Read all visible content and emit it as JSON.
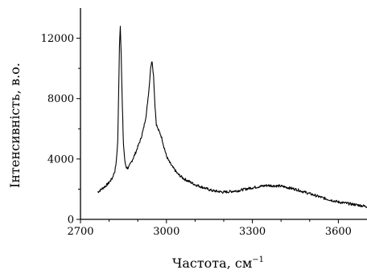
{
  "chart_data": {
    "type": "line",
    "xlabel": "Частота, см",
    "xlabel_sup": "−1",
    "ylabel": "Інтенсивність, в.о.",
    "xlim": [
      2700,
      3700
    ],
    "ylim": [
      0,
      14000
    ],
    "xticks": [
      2700,
      3000,
      3300,
      3600
    ],
    "xtick_labels": [
      "2700",
      "3000",
      "3300",
      "3600"
    ],
    "yticks": [
      0,
      4000,
      8000,
      12000
    ],
    "ytick_labels": [
      "0",
      "4000",
      "8000",
      "12000"
    ],
    "grid": false,
    "series": [
      {
        "color": "#000000",
        "x": [
          2760,
          2770,
          2780,
          2790,
          2800,
          2810,
          2820,
          2825,
          2830,
          2833,
          2836,
          2839,
          2842,
          2846,
          2850,
          2855,
          2860,
          2865,
          2870,
          2880,
          2890,
          2900,
          2910,
          2920,
          2930,
          2940,
          2945,
          2950,
          2955,
          2960,
          2965,
          2970,
          2975,
          2980,
          2985,
          2990,
          3000,
          3010,
          3020,
          3040,
          3060,
          3080,
          3100,
          3130,
          3160,
          3200,
          3250,
          3300,
          3350,
          3400,
          3450,
          3500,
          3550,
          3600,
          3650,
          3700
        ],
        "y": [
          1800,
          1950,
          2100,
          2250,
          2450,
          2700,
          3200,
          3800,
          5200,
          8000,
          11500,
          12800,
          11000,
          7500,
          5000,
          3800,
          3450,
          3400,
          3500,
          3900,
          4300,
          4800,
          5300,
          6000,
          7000,
          8800,
          10100,
          10500,
          9500,
          7500,
          6300,
          6000,
          5800,
          5600,
          5300,
          4900,
          4200,
          3800,
          3500,
          3000,
          2700,
          2500,
          2300,
          2100,
          1900,
          1800,
          1900,
          2100,
          2250,
          2200,
          2000,
          1700,
          1400,
          1150,
          1000,
          850
        ]
      }
    ]
  }
}
